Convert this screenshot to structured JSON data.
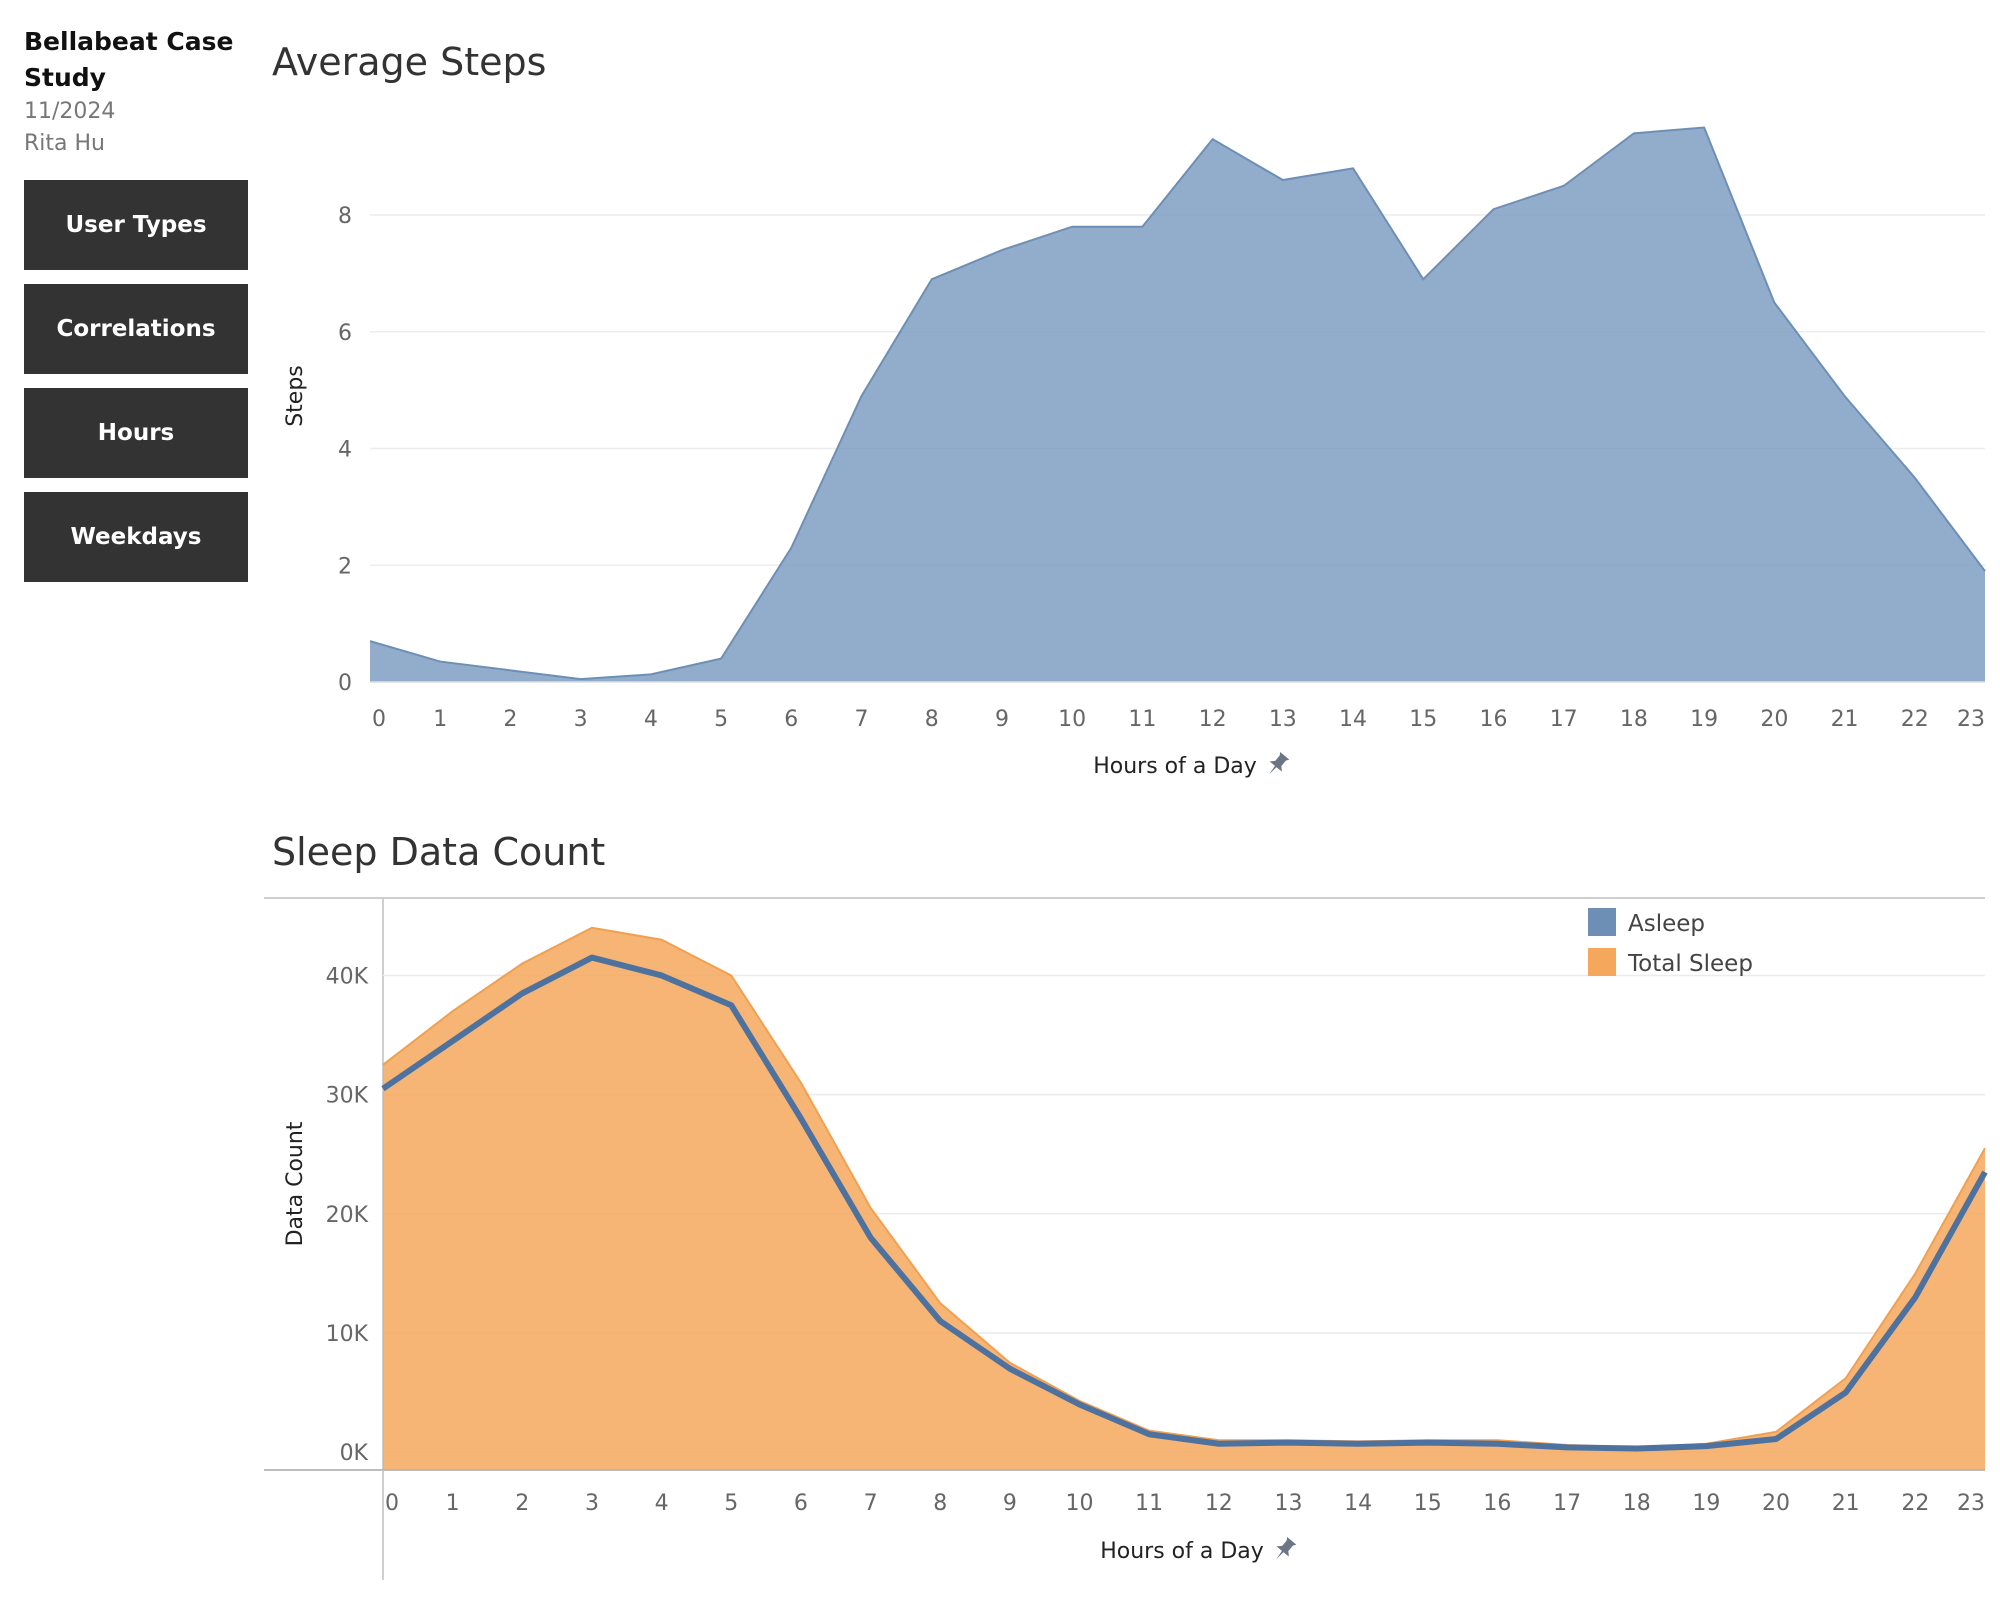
{
  "sidebar": {
    "title": "Bellabeat Case Study",
    "date": "11/2024",
    "author": "Rita Hu",
    "nav": [
      {
        "label": "User Types"
      },
      {
        "label": "Correlations"
      },
      {
        "label": "Hours"
      },
      {
        "label": "Weekdays"
      }
    ]
  },
  "colors": {
    "steps": "#7f9fc2",
    "asleep": "#4e72a0",
    "total_sleep": "#f5a85c"
  },
  "icons": {
    "axis_pin": "pin-icon"
  },
  "chart_data": [
    {
      "type": "area",
      "title": "Average Steps",
      "xlabel": "Hours of a Day",
      "ylabel": "Steps",
      "x": [
        0,
        1,
        2,
        3,
        4,
        5,
        6,
        7,
        8,
        9,
        10,
        11,
        12,
        13,
        14,
        15,
        16,
        17,
        18,
        19,
        20,
        21,
        22,
        23
      ],
      "xticks": [
        0,
        1,
        2,
        3,
        4,
        5,
        6,
        7,
        8,
        9,
        10,
        11,
        12,
        13,
        14,
        15,
        16,
        17,
        18,
        19,
        20,
        21,
        22,
        23
      ],
      "series": [
        {
          "values": [
            0.7,
            0.35,
            0.2,
            0.05,
            0.13,
            0.4,
            2.3,
            4.9,
            6.9,
            7.4,
            7.8,
            7.8,
            9.3,
            8.6,
            8.8,
            6.9,
            8.1,
            8.5,
            9.4,
            9.5,
            6.5,
            4.9,
            3.5,
            1.9
          ]
        }
      ],
      "yticks": [
        0,
        2,
        4,
        6,
        8
      ],
      "ylim": [
        0,
        9.8
      ],
      "grid": true
    },
    {
      "type": "area",
      "title": "Sleep Data Count",
      "xlabel": "Hours of a Day",
      "ylabel": "Data Count",
      "x": [
        0,
        1,
        2,
        3,
        4,
        5,
        6,
        7,
        8,
        9,
        10,
        11,
        12,
        13,
        14,
        15,
        16,
        17,
        18,
        19,
        20,
        21,
        22,
        23
      ],
      "xticks": [
        0,
        1,
        2,
        3,
        4,
        5,
        6,
        7,
        8,
        9,
        10,
        11,
        12,
        13,
        14,
        15,
        16,
        17,
        18,
        19,
        20,
        21,
        22,
        23
      ],
      "series": [
        {
          "name": "Total Sleep",
          "style": "area",
          "values": [
            32500,
            37000,
            41000,
            44000,
            43000,
            40000,
            31000,
            20500,
            12500,
            7500,
            4300,
            1800,
            1000,
            1000,
            900,
            1000,
            1000,
            600,
            400,
            700,
            1700,
            6200,
            15000,
            25500
          ]
        },
        {
          "name": "Asleep",
          "style": "line",
          "values": [
            30500,
            34500,
            38500,
            41500,
            40000,
            37500,
            28000,
            18000,
            11000,
            7000,
            4000,
            1500,
            700,
            800,
            700,
            800,
            700,
            400,
            300,
            500,
            1100,
            5000,
            13000,
            23500
          ]
        }
      ],
      "yticks": [
        0,
        10000,
        20000,
        30000,
        40000
      ],
      "ytick_labels": [
        "0K",
        "10K",
        "20K",
        "30K",
        "40K"
      ],
      "ylim": [
        -1500,
        46500
      ],
      "legend": "top-right",
      "grid": true
    }
  ]
}
